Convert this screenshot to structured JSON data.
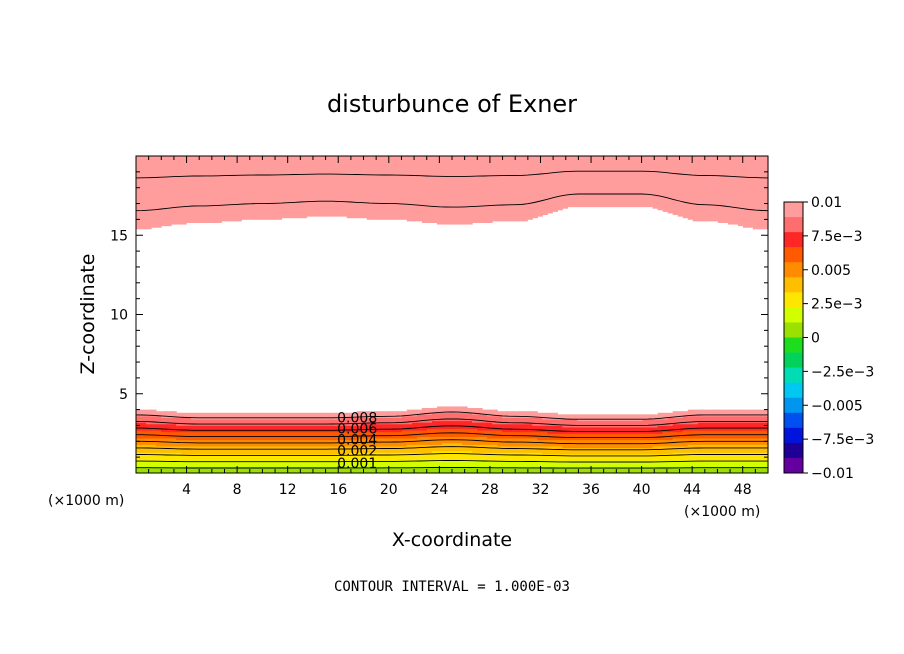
{
  "chart_data": {
    "type": "heatmap",
    "title": "disturbunce of Exner",
    "xlabel": "X-coordinate",
    "ylabel": "Z-coordinate",
    "x_unit": "(×1000 m)",
    "z_unit": "(×1000 m)",
    "xlim": [
      0,
      50
    ],
    "ylim": [
      0,
      20
    ],
    "x_ticks": [
      4,
      8,
      12,
      16,
      20,
      24,
      28,
      32,
      36,
      40,
      44,
      48
    ],
    "x_tick_labels": [
      "4",
      "8",
      "12",
      "16",
      "20",
      "24",
      "28",
      "32",
      "36",
      "40",
      "44",
      "48"
    ],
    "y_ticks": [
      5,
      10,
      15
    ],
    "y_tick_labels": [
      "5",
      "10",
      "15"
    ],
    "colorbar": {
      "min": -0.01,
      "max": 0.01,
      "step": 0.00125,
      "tick_values": [
        0.01,
        0.0075,
        0.005,
        0.0025,
        0,
        -0.0025,
        -0.005,
        -0.0075,
        -0.01
      ],
      "tick_labels": [
        "0.01",
        "7.5e-3",
        "0.005",
        "2.5e-3",
        "0",
        "-2.5e-3",
        "-0.005",
        "-7.5e-3",
        "-0.01"
      ],
      "colors_top_to_bottom": [
        "#ff9d9d",
        "#ff6e6e",
        "#ff2626",
        "#ff5a00",
        "#ff8c00",
        "#ffbe00",
        "#ffe600",
        "#d2ff00",
        "#9be100",
        "#1edc1e",
        "#00d25a",
        "#00dcb4",
        "#00c8f0",
        "#0096f0",
        "#0050f0",
        "#0014dc",
        "#1e0096",
        "#6400a0"
      ]
    },
    "contour_interval": 0.001,
    "footnote": "CONTOUR INTERVAL = 1.000E-03",
    "contour_labels": [
      {
        "text": "0.008",
        "x": 17.5,
        "z": 3.2
      },
      {
        "text": "0.006",
        "x": 17.5,
        "z": 2.5
      },
      {
        "text": "0.004",
        "x": 17.5,
        "z": 1.8
      },
      {
        "text": "0.002",
        "x": 17.5,
        "z": 1.1
      },
      {
        "text": "0.001",
        "x": 17.5,
        "z": 0.3
      }
    ],
    "field_samples": {
      "description": "disturbance of Exner function, positive near bottom and top boundaries",
      "x": [
        0,
        5,
        10,
        15,
        20,
        25,
        30,
        35,
        40,
        45,
        50
      ],
      "bottom_top_of_positive_layer_z": [
        4.0,
        3.8,
        3.8,
        3.8,
        3.9,
        4.2,
        3.9,
        3.7,
        3.7,
        4.0,
        4.0
      ],
      "top_layer_base_z": [
        15.4,
        15.8,
        16.0,
        16.2,
        16.0,
        15.7,
        15.9,
        16.8,
        16.8,
        15.9,
        15.4
      ]
    }
  }
}
